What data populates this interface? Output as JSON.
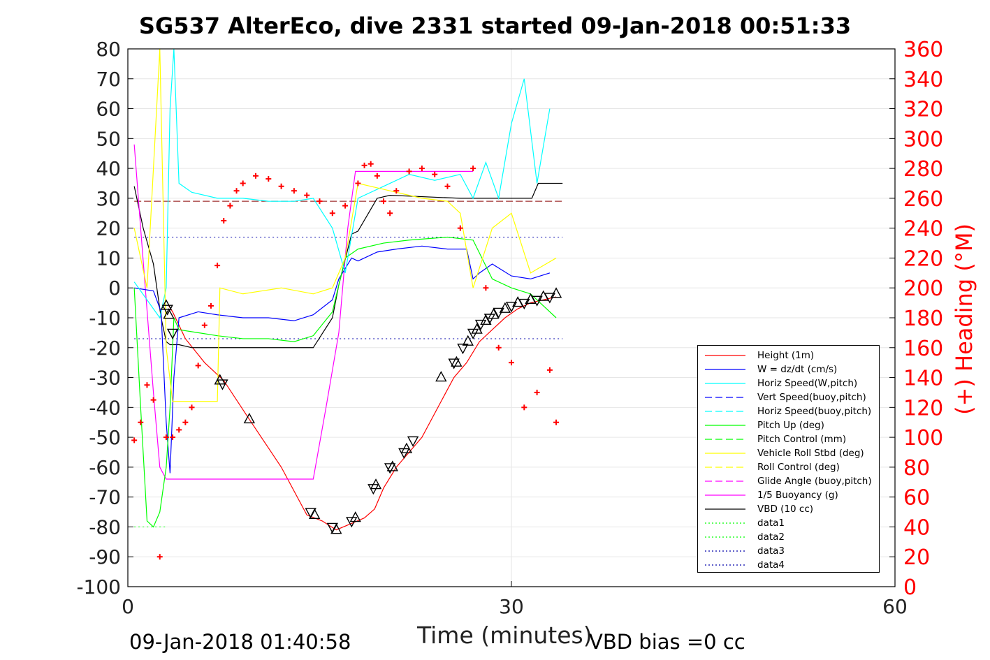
{
  "title": "SG537 AlterEco, dive 2331 started 09-Jan-2018 00:51:33",
  "footer_left": "09-Jan-2018 01:40:58",
  "footer_right": "VBD bias =0 cc",
  "xlabel": "Time (minutes)",
  "ylabel_right": "(+) Heading (°M)",
  "colors": {
    "height": "#ff0000",
    "w": "#0000ff",
    "hspeed": "#00ffff",
    "pitch": "#00ff00",
    "roll": "#ffff00",
    "glide": "#ff00ff",
    "vbd": "#000000",
    "heading": "#ff0000",
    "data_green": "#00ff00",
    "data_blue": "#0000aa"
  },
  "chart_data": {
    "type": "line",
    "xlim": [
      0,
      60
    ],
    "ylim": [
      -100,
      80
    ],
    "ylim_right": [
      0,
      360
    ],
    "x_ticks": [
      "0",
      "30",
      "60"
    ],
    "y_ticks": [
      "80",
      "70",
      "60",
      "50",
      "40",
      "30",
      "20",
      "10",
      "0",
      "-10",
      "-20",
      "-30",
      "-40",
      "-50",
      "-60",
      "-70",
      "-80",
      "-90",
      "-100"
    ],
    "y_ticks_right": [
      "360",
      "340",
      "320",
      "300",
      "280",
      "260",
      "240",
      "220",
      "200",
      "180",
      "160",
      "140",
      "120",
      "100",
      "80",
      "60",
      "40",
      "20",
      "0"
    ],
    "legend_position": "lower-right",
    "grid": true,
    "legend": [
      {
        "label": "Height (1m)",
        "color": "#ff0000",
        "style": "solid"
      },
      {
        "label": "W = dz/dt (cm/s)",
        "color": "#0000ff",
        "style": "solid"
      },
      {
        "label": "Horiz Speed(W,pitch)",
        "color": "#00ffff",
        "style": "solid"
      },
      {
        "label": "Vert Speed(buoy,pitch)",
        "color": "#0000ff",
        "style": "dashed"
      },
      {
        "label": "Horiz Speed(buoy,pitch)",
        "color": "#00ffff",
        "style": "dashed"
      },
      {
        "label": "Pitch Up (deg)",
        "color": "#00ff00",
        "style": "solid"
      },
      {
        "label": "Pitch Control (mm)",
        "color": "#00ff00",
        "style": "dashed"
      },
      {
        "label": "Vehicle Roll Stbd (deg)",
        "color": "#ffff00",
        "style": "solid"
      },
      {
        "label": "Roll Control (deg)",
        "color": "#ffff00",
        "style": "dashed"
      },
      {
        "label": "Glide Angle (buoy,pitch)",
        "color": "#ff00ff",
        "style": "dashed"
      },
      {
        "label": "1/5 Buoyancy (g)",
        "color": "#ff00ff",
        "style": "solid"
      },
      {
        "label": "VBD (10 cc)",
        "color": "#000000",
        "style": "solid"
      },
      {
        "label": "data1",
        "color": "#00ff00",
        "style": "dotted"
      },
      {
        "label": "data2",
        "color": "#00ff00",
        "style": "dotted"
      },
      {
        "label": "data3",
        "color": "#0000aa",
        "style": "dotted"
      },
      {
        "label": "data4",
        "color": "#0000aa",
        "style": "dotted"
      }
    ],
    "series": [
      {
        "name": "Height (1m)",
        "axis": "left",
        "color": "#ff0000",
        "style": "solid",
        "x": [
          3.2,
          3.5,
          4.5,
          6.0,
          7.5,
          9.5,
          12.0,
          14.0,
          15.2,
          16.3,
          17.4,
          18.5,
          19.3,
          20.0,
          21.0,
          22.0,
          23.0,
          24.5,
          25.5,
          26.5,
          27.5,
          28.5,
          29.5,
          30.5,
          31.5,
          32.5,
          33.5
        ],
        "y": [
          -6,
          -8,
          -17,
          -25,
          -31,
          -44,
          -60,
          -76,
          -78,
          -81,
          -79,
          -77,
          -74,
          -67,
          -60,
          -55,
          -50,
          -38,
          -30,
          -25,
          -18,
          -14,
          -10,
          -7,
          -5,
          -4,
          -3
        ]
      },
      {
        "name": "VBD (10 cc)",
        "axis": "left",
        "color": "#000000",
        "style": "solid",
        "x": [
          0.5,
          1.2,
          2.0,
          2.6,
          3.0,
          3.3,
          4.0,
          5.0,
          8.0,
          12.0,
          14.5,
          16.0,
          16.5,
          17.5,
          18.0,
          19.5,
          20.5,
          26.0,
          30.0,
          31.6,
          32.1,
          34.0
        ],
        "y": [
          34,
          20,
          8,
          -10,
          -18,
          -19,
          -19,
          -20,
          -20,
          -20,
          -20,
          -10,
          1,
          18,
          19,
          30,
          31,
          30,
          30,
          30,
          35,
          35
        ]
      },
      {
        "name": "1/5 Buoyancy (g)",
        "axis": "left",
        "color": "#ff00ff",
        "style": "solid",
        "x": [
          0.5,
          1.0,
          2.0,
          2.5,
          3.0,
          3.5,
          4.0,
          10.0,
          14.5,
          15.5,
          16.5,
          17.2,
          17.8,
          19.0,
          26.0,
          27.0
        ],
        "y": [
          48,
          20,
          -35,
          -60,
          -64,
          -64,
          -64,
          -64,
          -64,
          -40,
          -15,
          20,
          39,
          39,
          39,
          39
        ]
      },
      {
        "name": "W = dz/dt (cm/s)",
        "axis": "left",
        "color": "#0000ff",
        "style": "solid",
        "x": [
          0.5,
          2.0,
          2.6,
          3.0,
          3.3,
          3.6,
          4.0,
          5.5,
          7.0,
          9.0,
          11.0,
          13.0,
          14.5,
          16.0,
          16.5,
          17.5,
          18.0,
          19.5,
          21.0,
          23.0,
          25.0,
          26.5,
          27.0,
          27.5,
          28.5,
          30.0,
          31.5,
          33.0
        ],
        "y": [
          0,
          -1,
          -8,
          -45,
          -62,
          -30,
          -10,
          -8,
          -9,
          -10,
          -10,
          -11,
          -9,
          -4,
          3,
          10,
          9,
          12,
          13,
          14,
          13,
          13,
          3,
          5,
          8,
          4,
          3,
          5
        ]
      },
      {
        "name": "Pitch Up (deg)",
        "axis": "left",
        "color": "#00ff00",
        "style": "solid",
        "x": [
          0.5,
          1.0,
          1.5,
          2.0,
          2.5,
          3.0,
          3.3,
          3.6,
          4.0,
          5.5,
          7.0,
          9.0,
          11.0,
          13.0,
          14.5,
          16.0,
          17.0,
          18.0,
          20.0,
          22.0,
          25.0,
          27.0,
          28.5,
          30.0,
          31.5,
          33.5
        ],
        "y": [
          0,
          -40,
          -78,
          -80,
          -75,
          -60,
          -40,
          -10,
          -14,
          -15,
          -16,
          -17,
          -17,
          -18,
          -16,
          -8,
          10,
          13,
          15,
          16,
          17,
          16,
          3,
          0,
          -2,
          -10
        ]
      },
      {
        "name": "Horiz Speed(W,pitch)",
        "axis": "left",
        "color": "#00ffff",
        "style": "solid",
        "x": [
          0.5,
          2.5,
          3.0,
          3.3,
          3.6,
          4.0,
          5.0,
          7.0,
          9.0,
          11.0,
          13.0,
          14.5,
          16.0,
          17.0,
          18.0,
          20.0,
          22.0,
          24.0,
          26.0,
          27.0,
          28.0,
          29.0,
          30.0,
          31.0,
          32.0,
          33.0
        ],
        "y": [
          2,
          -10,
          0,
          60,
          80,
          35,
          32,
          30,
          30,
          29,
          29,
          30,
          20,
          5,
          30,
          34,
          38,
          36,
          38,
          30,
          42,
          30,
          55,
          70,
          35,
          60
        ]
      },
      {
        "name": "Vehicle Roll Stbd (deg)",
        "axis": "left",
        "color": "#ffff00",
        "style": "solid",
        "x": [
          0.5,
          1.5,
          2.5,
          3.0,
          3.5,
          4.0,
          6.0,
          7.0,
          7.2,
          9.0,
          12.0,
          14.5,
          16.0,
          17.0,
          18.0,
          20.0,
          23.0,
          25.0,
          26.0,
          27.0,
          28.5,
          30.0,
          31.5,
          33.5
        ],
        "y": [
          20,
          0,
          80,
          -20,
          -38,
          -38,
          -38,
          -38,
          0,
          -2,
          0,
          -2,
          0,
          10,
          35,
          33,
          30,
          29,
          25,
          0,
          20,
          25,
          5,
          10
        ]
      }
    ],
    "heading_points": {
      "name": "Heading",
      "axis": "right",
      "color": "#ff0000",
      "marker": "+",
      "x": [
        0.5,
        1.0,
        1.5,
        2.0,
        2.5,
        3.0,
        3.5,
        4.0,
        4.5,
        5.0,
        5.5,
        6.0,
        6.5,
        7.0,
        7.5,
        8.0,
        8.5,
        9.0,
        10.0,
        11.0,
        12.0,
        13.0,
        14.0,
        15.0,
        16.0,
        17.0,
        18.0,
        18.5,
        19.0,
        19.5,
        20.0,
        20.5,
        21.0,
        22.0,
        23.0,
        24.0,
        25.0,
        26.0,
        27.0,
        28.0,
        29.0,
        30.0,
        31.0,
        32.0,
        33.0,
        33.5
      ],
      "y": [
        98,
        110,
        135,
        125,
        20,
        100,
        100,
        105,
        110,
        120,
        148,
        175,
        188,
        215,
        245,
        255,
        265,
        270,
        275,
        273,
        268,
        265,
        262,
        258,
        250,
        255,
        270,
        282,
        283,
        275,
        258,
        250,
        265,
        278,
        280,
        276,
        268,
        240,
        280,
        200,
        160,
        150,
        120,
        130,
        145,
        110
      ]
    },
    "triangle_markers": {
      "name": "Depth samples",
      "axis": "left",
      "color": "#000000",
      "marker": "triangle",
      "x": [
        3.0,
        3.1,
        3.2,
        3.5,
        7.2,
        7.4,
        9.5,
        14.3,
        14.6,
        16.0,
        16.3,
        17.5,
        17.8,
        19.2,
        19.4,
        20.5,
        20.7,
        21.6,
        21.8,
        22.3,
        24.5,
        25.5,
        25.7,
        26.2,
        26.6,
        27.0,
        27.3,
        27.6,
        28.0,
        28.3,
        28.6,
        29.0,
        29.5,
        30.0,
        30.5,
        31.0,
        31.5,
        32.0,
        32.5,
        33.0,
        33.5
      ],
      "y": [
        -6,
        -7,
        -9,
        -15,
        -31,
        -32,
        -44,
        -75,
        -76,
        -80,
        -81,
        -78,
        -77,
        -67,
        -66,
        -60,
        -60,
        -55,
        -54,
        -51,
        -30,
        -25,
        -25,
        -20,
        -18,
        -15,
        -14,
        -12,
        -11,
        -10,
        -9,
        -8,
        -7,
        -6,
        -5,
        -5,
        -4,
        -4,
        -3,
        -3,
        -2
      ]
    },
    "reference_lines": [
      {
        "name": "data1",
        "color": "#00ff00",
        "y": -80,
        "x": [
          0.5,
          3.0
        ]
      },
      {
        "name": "data2",
        "color": "#00ff00",
        "y": -80,
        "x": [
          0.5,
          3.0
        ]
      },
      {
        "name": "data3",
        "color": "#0000aa",
        "y": 17,
        "x": [
          0.5,
          34.0
        ]
      },
      {
        "name": "data4",
        "color": "#0000aa",
        "y": -17,
        "x": [
          0.5,
          34.0
        ]
      },
      {
        "name": "dashed-red",
        "color": "#8b0000",
        "y": 29,
        "x": [
          0.5,
          34.0
        ]
      }
    ]
  }
}
